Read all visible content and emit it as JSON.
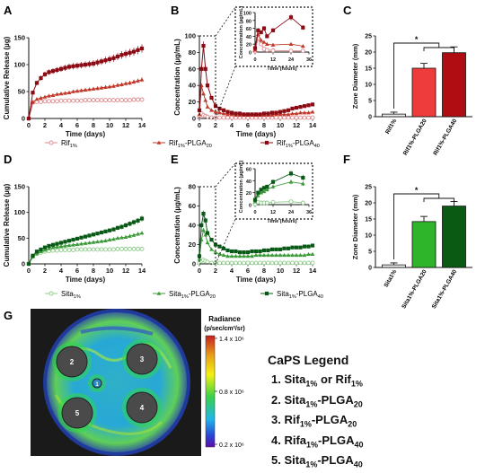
{
  "panel_letters": {
    "A": "A",
    "B": "B",
    "C": "C",
    "D": "D",
    "E": "E",
    "F": "F",
    "G": "G"
  },
  "colors": {
    "rif_dark": "#8b0a14",
    "rif_mid": "#c0392b",
    "rif_light": "#e08a8f",
    "rif_bar_light": "#f0eeee",
    "rif_bar_mid": "#ee3b3b",
    "rif_bar_dark": "#b00d12",
    "sita_dark": "#0a5a17",
    "sita_mid": "#3d9a3a",
    "sita_light": "#8dcc88",
    "sita_bar_light": "#f0f0f0",
    "sita_bar_mid": "#2fb52a",
    "sita_bar_dark": "#0b5a14"
  },
  "legend_top": {
    "items": [
      {
        "name": "Rif",
        "sub": "1%",
        "suffix": "",
        "suffix_sub": ""
      },
      {
        "name": "Rif",
        "sub": "1%",
        "suffix": "-PLGA",
        "suffix_sub": "20"
      },
      {
        "name": "Rif",
        "sub": "1%",
        "suffix": "-PLGA",
        "suffix_sub": "40"
      }
    ]
  },
  "legend_bottom": {
    "items": [
      {
        "name": "Sita",
        "sub": "1%",
        "suffix": "",
        "suffix_sub": ""
      },
      {
        "name": "Sita",
        "sub": "1%",
        "suffix": "-PLGA",
        "suffix_sub": "20"
      },
      {
        "name": "Sita",
        "sub": "1%",
        "suffix": "-PLGA",
        "suffix_sub": "40"
      }
    ]
  },
  "chart_data": [
    {
      "panel": "A",
      "type": "line",
      "xlabel": "Time (days)",
      "ylabel": "Cumulative Release (µg)",
      "xlim": [
        0,
        14
      ],
      "ylim": [
        0,
        150
      ],
      "xticks": [
        0,
        2,
        4,
        6,
        8,
        10,
        12,
        14
      ],
      "yticks": [
        0,
        50,
        100,
        150
      ],
      "x": [
        0,
        0.5,
        1,
        1.5,
        2,
        2.5,
        3,
        3.5,
        4,
        4.5,
        5,
        5.5,
        6,
        6.5,
        7,
        7.5,
        8,
        8.5,
        9,
        9.5,
        10,
        10.5,
        11,
        11.5,
        12,
        12.5,
        13,
        13.5,
        14
      ],
      "series": [
        {
          "name": "Rif1%",
          "values": [
            0,
            30,
            31,
            31,
            32,
            32,
            32,
            32,
            33,
            33,
            33,
            33,
            33,
            33,
            34,
            34,
            34,
            34,
            34,
            34,
            34,
            34,
            34,
            34,
            34,
            34,
            35,
            35,
            35
          ]
        },
        {
          "name": "Rif1%-PLGA20",
          "values": [
            0,
            30,
            36,
            38,
            40,
            42,
            43,
            45,
            46,
            47,
            48,
            50,
            51,
            52,
            53,
            54,
            55,
            56,
            57,
            58,
            59,
            60,
            62,
            63,
            65,
            66,
            68,
            70,
            72
          ]
        },
        {
          "name": "Rif1%-PLGA40",
          "values": [
            0,
            48,
            66,
            75,
            82,
            86,
            88,
            90,
            92,
            94,
            96,
            97,
            98,
            99,
            100,
            101,
            102,
            104,
            106,
            108,
            110,
            112,
            115,
            118,
            120,
            122,
            124,
            127,
            130
          ]
        }
      ]
    },
    {
      "panel": "B",
      "type": "line",
      "xlabel": "Time (days)",
      "ylabel": "Concentration (µg/mL)",
      "xlim": [
        0,
        14
      ],
      "ylim": [
        0,
        100
      ],
      "xticks": [
        0,
        2,
        4,
        6,
        8,
        10,
        12,
        14
      ],
      "yticks": [
        0,
        20,
        40,
        60,
        80,
        100
      ],
      "x": [
        0,
        0.25,
        0.5,
        0.75,
        1,
        1.5,
        2,
        2.5,
        3,
        3.5,
        4,
        4.5,
        5,
        5.5,
        6,
        6.5,
        7,
        7.5,
        8,
        8.5,
        9,
        9.5,
        10,
        10.5,
        11,
        11.5,
        12,
        12.5,
        13,
        13.5,
        14
      ],
      "series": [
        {
          "name": "Rif1%",
          "values": [
            2,
            6,
            4,
            3,
            2,
            1,
            1,
            1,
            1,
            1,
            1,
            1,
            1,
            1,
            1,
            1,
            1,
            1,
            1,
            1,
            1,
            1,
            1,
            1,
            1,
            1,
            1,
            1,
            1,
            1,
            1
          ]
        },
        {
          "name": "Rif1%-PLGA20",
          "values": [
            5,
            40,
            30,
            22,
            14,
            10,
            8,
            7,
            6,
            5,
            5,
            4,
            4,
            4,
            4,
            4,
            4,
            4,
            4,
            4,
            4,
            5,
            5,
            5,
            5,
            6,
            6,
            7,
            7,
            7,
            8
          ]
        },
        {
          "name": "Rif1%-PLGA40",
          "values": [
            10,
            60,
            88,
            60,
            40,
            25,
            15,
            12,
            10,
            8,
            7,
            6,
            6,
            5,
            5,
            5,
            5,
            5,
            6,
            6,
            7,
            7,
            8,
            9,
            10,
            12,
            13,
            14,
            15,
            16,
            17
          ]
        }
      ],
      "inset": {
        "xlabel": "Time (hours)",
        "ylabel": "Concentration (µg/mL)",
        "xlim": [
          0,
          36
        ],
        "ylim": [
          0,
          100
        ],
        "xticks": [
          0,
          12,
          24,
          36
        ],
        "yticks": [
          0,
          20,
          40,
          60,
          80,
          100
        ],
        "x": [
          0,
          2,
          4,
          6,
          8,
          12,
          24,
          32
        ],
        "series": [
          {
            "name": "Rif1%",
            "values": [
              2,
              35,
              20,
              8,
              5,
              4,
              3,
              3
            ]
          },
          {
            "name": "Rif1%-PLGA20",
            "values": [
              5,
              45,
              30,
              25,
              20,
              18,
              20,
              15
            ]
          },
          {
            "name": "Rif1%-PLGA40",
            "values": [
              10,
              55,
              50,
              60,
              40,
              55,
              88,
              62
            ]
          }
        ]
      }
    },
    {
      "panel": "C",
      "type": "bar",
      "ylabel": "Zone Diameter (mm)",
      "ylim": [
        0,
        25
      ],
      "yticks": [
        0,
        5,
        10,
        15,
        20,
        25
      ],
      "categories": [
        "Rif1%",
        "Rif1%-PLGA20",
        "Rif1%-PLGA40"
      ],
      "values": [
        0.8,
        15,
        19.8
      ],
      "errors": [
        0.6,
        1.5,
        1.8
      ],
      "significance": "*"
    },
    {
      "panel": "D",
      "type": "line",
      "xlabel": "Time (days)",
      "ylabel": "Cumulative Release (µg)",
      "xlim": [
        0,
        14
      ],
      "ylim": [
        0,
        150
      ],
      "xticks": [
        0,
        2,
        4,
        6,
        8,
        10,
        12,
        14
      ],
      "yticks": [
        0,
        50,
        100,
        150
      ],
      "x": [
        0,
        0.5,
        1,
        1.5,
        2,
        2.5,
        3,
        3.5,
        4,
        4.5,
        5,
        5.5,
        6,
        6.5,
        7,
        7.5,
        8,
        8.5,
        9,
        9.5,
        10,
        10.5,
        11,
        11.5,
        12,
        12.5,
        13,
        13.5,
        14
      ],
      "series": [
        {
          "name": "Sita1%",
          "values": [
            0,
            14,
            20,
            22,
            24,
            25,
            26,
            26,
            27,
            27,
            27,
            27,
            28,
            28,
            28,
            28,
            28,
            28,
            28,
            28,
            28,
            28,
            29,
            29,
            29,
            29,
            29,
            29,
            29
          ]
        },
        {
          "name": "Sita1%-PLGA20",
          "values": [
            0,
            14,
            20,
            24,
            27,
            30,
            32,
            33,
            34,
            35,
            36,
            37,
            38,
            39,
            40,
            41,
            42,
            43,
            44,
            45,
            47,
            48,
            50,
            51,
            52,
            54,
            56,
            58,
            60
          ]
        },
        {
          "name": "Sita1%-PLGA40",
          "values": [
            0,
            16,
            24,
            28,
            32,
            35,
            37,
            39,
            41,
            43,
            45,
            47,
            49,
            51,
            53,
            55,
            57,
            59,
            61,
            63,
            65,
            67,
            70,
            72,
            75,
            78,
            81,
            84,
            88
          ]
        }
      ]
    },
    {
      "panel": "E",
      "type": "line",
      "xlabel": "Time (days)",
      "ylabel": "Concentration (µg/mL)",
      "xlim": [
        0,
        14
      ],
      "ylim": [
        0,
        80
      ],
      "xticks": [
        0,
        2,
        4,
        6,
        8,
        10,
        12,
        14
      ],
      "yticks": [
        0,
        20,
        40,
        60,
        80
      ],
      "x": [
        0,
        0.25,
        0.5,
        0.75,
        1,
        1.5,
        2,
        2.5,
        3,
        3.5,
        4,
        4.5,
        5,
        5.5,
        6,
        6.5,
        7,
        7.5,
        8,
        8.5,
        9,
        9.5,
        10,
        10.5,
        11,
        11.5,
        12,
        12.5,
        13,
        13.5,
        14
      ],
      "series": [
        {
          "name": "Sita1%",
          "values": [
            1,
            3,
            4,
            3,
            2,
            1,
            1,
            1,
            1,
            1,
            1,
            1,
            1,
            1,
            1,
            1,
            1,
            1,
            1,
            1,
            1,
            1,
            1,
            1,
            1,
            1,
            1,
            1,
            1,
            1,
            1
          ]
        },
        {
          "name": "Sita1%-PLGA20",
          "values": [
            5,
            25,
            35,
            30,
            22,
            15,
            12,
            10,
            9,
            8,
            8,
            8,
            8,
            8,
            8,
            8,
            9,
            9,
            9,
            9,
            9,
            9,
            9,
            9,
            9,
            9,
            9,
            9,
            9,
            10,
            10
          ]
        },
        {
          "name": "Sita1%-PLGA40",
          "values": [
            8,
            40,
            52,
            45,
            32,
            25,
            20,
            18,
            16,
            14,
            13,
            13,
            12,
            12,
            12,
            13,
            13,
            13,
            14,
            14,
            15,
            15,
            15,
            16,
            16,
            17,
            17,
            17,
            18,
            18,
            19
          ]
        }
      ],
      "inset": {
        "xlabel": "Time (hours)",
        "ylabel": "Concentration (µg/mL)",
        "xlim": [
          0,
          36
        ],
        "ylim": [
          0,
          60
        ],
        "xticks": [
          0,
          12,
          24,
          36
        ],
        "yticks": [
          0,
          20,
          40,
          60
        ],
        "x": [
          0,
          2,
          4,
          6,
          8,
          12,
          24,
          32
        ],
        "series": [
          {
            "name": "Sita1%",
            "values": [
              1,
              4,
              3,
              3,
              3,
              4,
              5,
              3
            ]
          },
          {
            "name": "Sita1%-PLGA20",
            "values": [
              5,
              15,
              20,
              22,
              25,
              30,
              38,
              35
            ]
          },
          {
            "name": "Sita1%-PLGA40",
            "values": [
              8,
              20,
              25,
              28,
              30,
              38,
              52,
              45
            ]
          }
        ]
      }
    },
    {
      "panel": "F",
      "type": "bar",
      "ylabel": "Zone Diameter (mm)",
      "ylim": [
        0,
        25
      ],
      "yticks": [
        0,
        5,
        10,
        15,
        20,
        25
      ],
      "categories": [
        "Sita1%",
        "Sita1%-PLGA20",
        "Sita1%-PLGA40"
      ],
      "values": [
        0.8,
        14.2,
        19
      ],
      "errors": [
        0.6,
        1.6,
        1.4
      ],
      "significance": "*"
    }
  ],
  "radiance": {
    "title": "Radiance",
    "unit": "(p/sec/cm²/sr)",
    "ticks": [
      "1.4 x 10⁶",
      "0.8 x 10⁶",
      "0.2 x 10⁶"
    ],
    "dish_labels": [
      "1",
      "2",
      "3",
      "4",
      "5"
    ]
  },
  "caps_legend": {
    "title": "CaPS Legend",
    "items": [
      {
        "n": "1. ",
        "parts": [
          [
            "Sita",
            "1%"
          ],
          [
            " or Rif",
            "1%"
          ]
        ]
      },
      {
        "n": "2. ",
        "parts": [
          [
            "Sita",
            "1%"
          ],
          [
            "-PLGA",
            "20"
          ]
        ]
      },
      {
        "n": "3. ",
        "parts": [
          [
            "Rif",
            "1%"
          ],
          [
            "-PLGA",
            "20"
          ]
        ]
      },
      {
        "n": "4. ",
        "parts": [
          [
            "Rifa",
            "1%"
          ],
          [
            "-PLGA",
            "40"
          ]
        ]
      },
      {
        "n": "5. ",
        "parts": [
          [
            "Sita",
            "1%"
          ],
          [
            "-PLGA",
            "40"
          ]
        ]
      }
    ]
  }
}
